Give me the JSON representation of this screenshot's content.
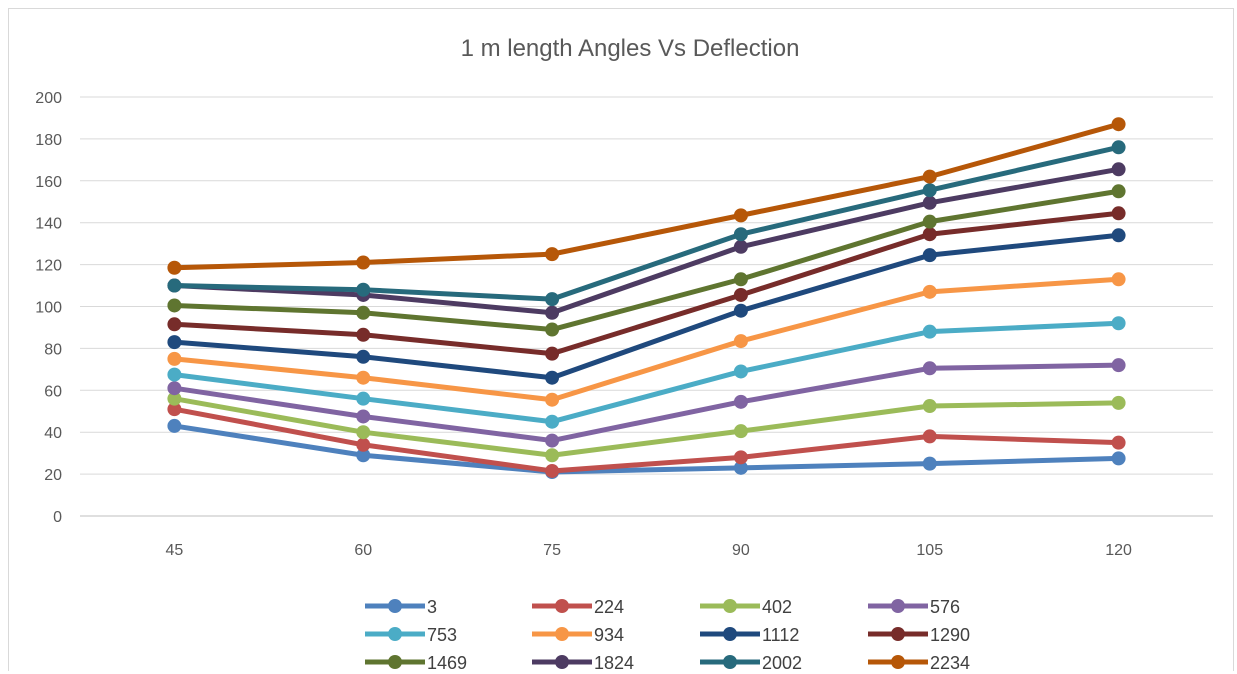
{
  "chart_data": {
    "type": "line",
    "title": "1 m length Angles Vs Deflection",
    "xlabel": "",
    "ylabel": "",
    "categories": [
      "45",
      "60",
      "75",
      "90",
      "105",
      "120"
    ],
    "ylim": [
      0,
      200
    ],
    "yticks": [
      0,
      20,
      40,
      60,
      80,
      100,
      120,
      140,
      160,
      180,
      200
    ],
    "grid": true,
    "legend_position": "bottom",
    "series": [
      {
        "name": "3",
        "color": "#4e81bd",
        "values": [
          43,
          29,
          21,
          23,
          25,
          27.5
        ]
      },
      {
        "name": "224",
        "color": "#c0504d",
        "values": [
          51,
          34,
          21.5,
          28,
          38,
          35
        ]
      },
      {
        "name": "402",
        "color": "#9bbb59",
        "values": [
          56,
          40,
          29,
          40.5,
          52.5,
          54
        ]
      },
      {
        "name": "576",
        "color": "#8064a2",
        "values": [
          61,
          47.5,
          36,
          54.5,
          70.5,
          72
        ]
      },
      {
        "name": "753",
        "color": "#4bacc6",
        "values": [
          67.5,
          56,
          45,
          69,
          88,
          92
        ]
      },
      {
        "name": "934",
        "color": "#f79646",
        "values": [
          75,
          66,
          55.5,
          83.5,
          107,
          113
        ]
      },
      {
        "name": "1112",
        "color": "#1f497d",
        "values": [
          83,
          76,
          66,
          98,
          124.5,
          134
        ]
      },
      {
        "name": "1290",
        "color": "#772c2a",
        "values": [
          91.5,
          86.5,
          77.5,
          105.5,
          134.5,
          144.5
        ]
      },
      {
        "name": "1469",
        "color": "#5f7530",
        "values": [
          100.5,
          97,
          89,
          113,
          140.5,
          155
        ]
      },
      {
        "name": "1824",
        "color": "#4d3b62",
        "values": [
          110,
          105.5,
          97,
          128.5,
          149.5,
          165.5
        ]
      },
      {
        "name": "2002",
        "color": "#276a7c",
        "values": [
          110,
          108,
          103.5,
          134.5,
          155.5,
          176
        ]
      },
      {
        "name": "2234",
        "color": "#b65708",
        "values": [
          118.5,
          121,
          125,
          143.5,
          162,
          187
        ]
      }
    ]
  }
}
